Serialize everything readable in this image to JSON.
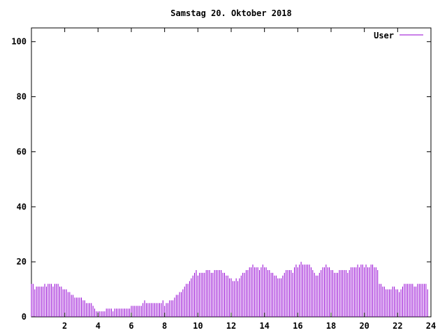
{
  "chart_data": {
    "type": "bar",
    "title": "Samstag 20. Oktober 2018",
    "xlabel": "",
    "ylabel": "",
    "xlim": [
      0,
      24
    ],
    "ylim": [
      0,
      105
    ],
    "xticks": [
      2,
      4,
      6,
      8,
      10,
      12,
      14,
      16,
      18,
      20,
      22,
      24
    ],
    "xtick_labels": [
      "2",
      "4",
      "6",
      "8",
      "10",
      "12",
      "14",
      "16",
      "18",
      "20",
      "22",
      "24"
    ],
    "yticks": [
      0,
      20,
      40,
      60,
      80,
      100
    ],
    "ytick_labels": [
      "0",
      "20",
      "40",
      "60",
      "80",
      "100"
    ],
    "grid": false,
    "legend_position": "top-right",
    "series": [
      {
        "name": "User",
        "color": "#9400d3",
        "x_start": 0,
        "x_step": 0.1,
        "values": [
          12,
          12,
          10,
          11,
          11,
          11,
          11,
          11,
          12,
          11,
          12,
          12,
          12,
          11,
          12,
          12,
          12,
          11,
          11,
          10,
          10,
          10,
          9,
          9,
          8,
          8,
          7,
          7,
          7,
          7,
          7,
          6,
          6,
          5,
          5,
          5,
          5,
          4,
          3,
          2,
          2,
          2,
          2,
          2,
          2,
          3,
          3,
          3,
          3,
          2,
          3,
          3,
          3,
          3,
          3,
          3,
          3,
          3,
          3,
          3,
          4,
          4,
          4,
          4,
          4,
          4,
          4,
          5,
          6,
          5,
          5,
          5,
          5,
          5,
          5,
          5,
          5,
          5,
          5,
          6,
          4,
          5,
          5,
          6,
          6,
          6,
          7,
          8,
          8,
          9,
          9,
          10,
          11,
          12,
          12,
          13,
          14,
          15,
          16,
          17,
          15,
          16,
          16,
          16,
          16,
          17,
          17,
          17,
          16,
          16,
          17,
          17,
          17,
          17,
          17,
          16,
          16,
          15,
          15,
          14,
          14,
          13,
          13,
          14,
          13,
          14,
          15,
          16,
          16,
          17,
          17,
          18,
          18,
          19,
          18,
          18,
          18,
          17,
          18,
          19,
          18,
          18,
          17,
          17,
          16,
          16,
          15,
          15,
          14,
          14,
          14,
          15,
          16,
          17,
          17,
          17,
          17,
          16,
          18,
          19,
          18,
          19,
          20,
          19,
          19,
          19,
          19,
          19,
          18,
          17,
          16,
          15,
          15,
          16,
          17,
          18,
          18,
          19,
          18,
          18,
          17,
          17,
          16,
          16,
          16,
          17,
          17,
          17,
          17,
          17,
          16,
          17,
          18,
          18,
          18,
          18,
          19,
          18,
          19,
          19,
          18,
          19,
          18,
          18,
          19,
          19,
          18,
          18,
          17,
          12,
          12,
          11,
          11,
          10,
          10,
          10,
          10,
          11,
          11,
          10,
          10,
          9,
          10,
          11,
          12,
          12,
          12,
          12,
          12,
          12,
          11,
          11,
          12,
          12,
          12,
          12,
          12,
          12,
          10
        ]
      }
    ]
  }
}
